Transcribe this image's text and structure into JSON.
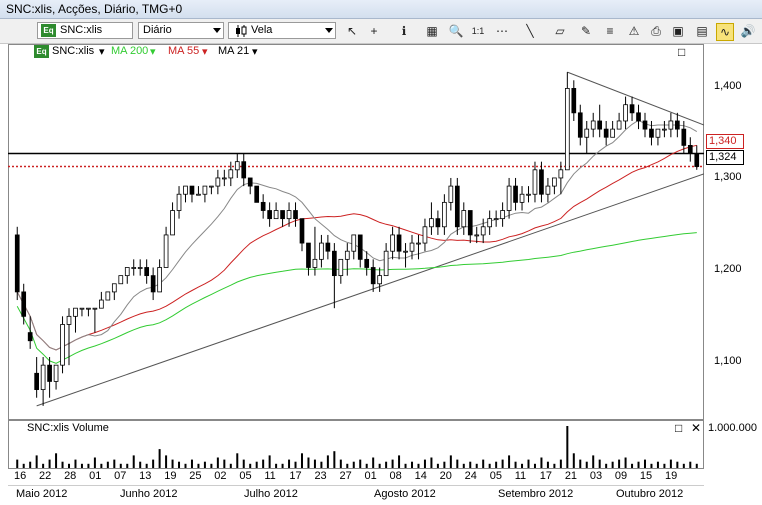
{
  "window": {
    "title": "SNC:xlis, Acções, Diário, TMG+0"
  },
  "toolbar": {
    "symbol": "SNC:xlis",
    "symbol_badge": "Eq",
    "period": "Diário",
    "chart_style": "Vela",
    "zoom_label": "1:1"
  },
  "legend": {
    "symbol": "SNC:xlis",
    "badge": "Eq",
    "ma200": "MA 200",
    "ma55": "MA 55",
    "ma21": "MA 21",
    "colors": {
      "ma200": "#33cc33",
      "ma55": "#cc2222",
      "ma21": "#888888"
    }
  },
  "price_axis": {
    "ticks": [
      "1,400",
      "1,300",
      "1,200",
      "1,100"
    ]
  },
  "price_tags": {
    "resistance": "1,340",
    "last": "1,324"
  },
  "volume_panel": {
    "label": "SNC:xlis Volume",
    "axis_tick": "1.000.000"
  },
  "x_axis": {
    "days": [
      "16",
      "22",
      "28",
      "01",
      "07",
      "13",
      "19",
      "25",
      "02",
      "05",
      "11",
      "17",
      "23",
      "27",
      "01",
      "08",
      "14",
      "20",
      "24",
      "05",
      "11",
      "17",
      "21",
      "03",
      "09",
      "15",
      "19"
    ],
    "months": [
      "Maio 2012",
      "Junho 2012",
      "Julho 2012",
      "Agosto 2012",
      "Setembro 2012",
      "Outubro 2012"
    ]
  },
  "chart_data": {
    "type": "candlestick",
    "ylim": [
      1.02,
      1.45
    ],
    "candles": [
      [
        1.24,
        1.25,
        1.16,
        1.17
      ],
      [
        1.17,
        1.18,
        1.13,
        1.14
      ],
      [
        1.12,
        1.14,
        1.1,
        1.11
      ],
      [
        1.07,
        1.09,
        1.04,
        1.05
      ],
      [
        1.05,
        1.09,
        1.03,
        1.08
      ],
      [
        1.08,
        1.09,
        1.04,
        1.06
      ],
      [
        1.06,
        1.08,
        1.05,
        1.08
      ],
      [
        1.08,
        1.14,
        1.07,
        1.13
      ],
      [
        1.13,
        1.15,
        1.08,
        1.14
      ],
      [
        1.14,
        1.15,
        1.12,
        1.15
      ],
      [
        1.15,
        1.15,
        1.14,
        1.15
      ],
      [
        1.15,
        1.15,
        1.14,
        1.15
      ],
      [
        1.15,
        1.15,
        1.12,
        1.15
      ],
      [
        1.15,
        1.17,
        1.15,
        1.16
      ],
      [
        1.16,
        1.17,
        1.16,
        1.17
      ],
      [
        1.17,
        1.18,
        1.16,
        1.18
      ],
      [
        1.18,
        1.19,
        1.18,
        1.19
      ],
      [
        1.19,
        1.2,
        1.18,
        1.2
      ],
      [
        1.2,
        1.21,
        1.19,
        1.2
      ],
      [
        1.2,
        1.21,
        1.19,
        1.2
      ],
      [
        1.2,
        1.21,
        1.18,
        1.19
      ],
      [
        1.19,
        1.2,
        1.16,
        1.17
      ],
      [
        1.17,
        1.21,
        1.17,
        1.2
      ],
      [
        1.2,
        1.25,
        1.2,
        1.24
      ],
      [
        1.24,
        1.28,
        1.24,
        1.27
      ],
      [
        1.27,
        1.3,
        1.26,
        1.29
      ],
      [
        1.29,
        1.3,
        1.28,
        1.3
      ],
      [
        1.3,
        1.3,
        1.28,
        1.29
      ],
      [
        1.29,
        1.3,
        1.29,
        1.29
      ],
      [
        1.29,
        1.3,
        1.28,
        1.3
      ],
      [
        1.3,
        1.3,
        1.29,
        1.3
      ],
      [
        1.3,
        1.32,
        1.29,
        1.31
      ],
      [
        1.31,
        1.32,
        1.3,
        1.31
      ],
      [
        1.31,
        1.33,
        1.3,
        1.32
      ],
      [
        1.32,
        1.34,
        1.31,
        1.33
      ],
      [
        1.33,
        1.34,
        1.3,
        1.31
      ],
      [
        1.31,
        1.31,
        1.29,
        1.3
      ],
      [
        1.3,
        1.3,
        1.28,
        1.28
      ],
      [
        1.28,
        1.29,
        1.26,
        1.27
      ],
      [
        1.27,
        1.28,
        1.25,
        1.26
      ],
      [
        1.26,
        1.28,
        1.26,
        1.27
      ],
      [
        1.27,
        1.27,
        1.25,
        1.26
      ],
      [
        1.26,
        1.28,
        1.25,
        1.27
      ],
      [
        1.27,
        1.28,
        1.25,
        1.26
      ],
      [
        1.26,
        1.26,
        1.22,
        1.23
      ],
      [
        1.23,
        1.23,
        1.19,
        1.2
      ],
      [
        1.2,
        1.25,
        1.19,
        1.21
      ],
      [
        1.21,
        1.24,
        1.2,
        1.23
      ],
      [
        1.23,
        1.24,
        1.21,
        1.22
      ],
      [
        1.22,
        1.23,
        1.15,
        1.19
      ],
      [
        1.19,
        1.21,
        1.18,
        1.21
      ],
      [
        1.21,
        1.23,
        1.19,
        1.22
      ],
      [
        1.22,
        1.24,
        1.21,
        1.24
      ],
      [
        1.24,
        1.24,
        1.2,
        1.21
      ],
      [
        1.21,
        1.22,
        1.19,
        1.2
      ],
      [
        1.2,
        1.21,
        1.17,
        1.18
      ],
      [
        1.18,
        1.2,
        1.17,
        1.19
      ],
      [
        1.19,
        1.23,
        1.19,
        1.22
      ],
      [
        1.22,
        1.25,
        1.21,
        1.24
      ],
      [
        1.24,
        1.25,
        1.21,
        1.22
      ],
      [
        1.22,
        1.23,
        1.2,
        1.22
      ],
      [
        1.22,
        1.24,
        1.21,
        1.23
      ],
      [
        1.23,
        1.24,
        1.21,
        1.23
      ],
      [
        1.23,
        1.26,
        1.22,
        1.25
      ],
      [
        1.25,
        1.28,
        1.24,
        1.26
      ],
      [
        1.26,
        1.27,
        1.24,
        1.25
      ],
      [
        1.25,
        1.29,
        1.24,
        1.28
      ],
      [
        1.28,
        1.31,
        1.27,
        1.3
      ],
      [
        1.3,
        1.31,
        1.24,
        1.25
      ],
      [
        1.25,
        1.28,
        1.24,
        1.27
      ],
      [
        1.27,
        1.27,
        1.23,
        1.24
      ],
      [
        1.24,
        1.25,
        1.23,
        1.24
      ],
      [
        1.24,
        1.26,
        1.23,
        1.25
      ],
      [
        1.25,
        1.27,
        1.24,
        1.26
      ],
      [
        1.26,
        1.27,
        1.25,
        1.26
      ],
      [
        1.26,
        1.28,
        1.25,
        1.27
      ],
      [
        1.27,
        1.31,
        1.26,
        1.3
      ],
      [
        1.3,
        1.31,
        1.27,
        1.28
      ],
      [
        1.28,
        1.3,
        1.27,
        1.29
      ],
      [
        1.29,
        1.3,
        1.28,
        1.29
      ],
      [
        1.29,
        1.33,
        1.28,
        1.32
      ],
      [
        1.32,
        1.33,
        1.28,
        1.29
      ],
      [
        1.29,
        1.31,
        1.28,
        1.3
      ],
      [
        1.3,
        1.31,
        1.29,
        1.31
      ],
      [
        1.31,
        1.33,
        1.29,
        1.32
      ],
      [
        1.32,
        1.44,
        1.32,
        1.42
      ],
      [
        1.42,
        1.43,
        1.38,
        1.39
      ],
      [
        1.39,
        1.4,
        1.35,
        1.36
      ],
      [
        1.36,
        1.38,
        1.34,
        1.37
      ],
      [
        1.37,
        1.39,
        1.36,
        1.38
      ],
      [
        1.38,
        1.4,
        1.36,
        1.37
      ],
      [
        1.37,
        1.38,
        1.35,
        1.36
      ],
      [
        1.36,
        1.38,
        1.36,
        1.37
      ],
      [
        1.37,
        1.39,
        1.37,
        1.38
      ],
      [
        1.38,
        1.41,
        1.37,
        1.4
      ],
      [
        1.4,
        1.41,
        1.38,
        1.39
      ],
      [
        1.39,
        1.4,
        1.37,
        1.38
      ],
      [
        1.38,
        1.39,
        1.36,
        1.37
      ],
      [
        1.37,
        1.38,
        1.35,
        1.36
      ],
      [
        1.36,
        1.37,
        1.35,
        1.37
      ],
      [
        1.37,
        1.38,
        1.36,
        1.37
      ],
      [
        1.37,
        1.39,
        1.36,
        1.38
      ],
      [
        1.38,
        1.39,
        1.36,
        1.37
      ],
      [
        1.37,
        1.38,
        1.34,
        1.35
      ],
      [
        1.35,
        1.36,
        1.33,
        1.34
      ],
      [
        1.34,
        1.35,
        1.32,
        1.324
      ]
    ],
    "volume": [
      0.2,
      0.1,
      0.15,
      0.3,
      0.1,
      0.2,
      0.35,
      0.15,
      0.1,
      0.2,
      0.1,
      0.1,
      0.25,
      0.1,
      0.15,
      0.2,
      0.1,
      0.1,
      0.3,
      0.15,
      0.1,
      0.2,
      0.45,
      0.3,
      0.2,
      0.15,
      0.1,
      0.2,
      0.1,
      0.15,
      0.1,
      0.25,
      0.2,
      0.1,
      0.35,
      0.2,
      0.1,
      0.15,
      0.2,
      0.3,
      0.1,
      0.1,
      0.2,
      0.15,
      0.35,
      0.25,
      0.2,
      0.15,
      0.3,
      0.4,
      0.2,
      0.1,
      0.15,
      0.2,
      0.1,
      0.25,
      0.1,
      0.15,
      0.2,
      0.3,
      0.1,
      0.15,
      0.1,
      0.2,
      0.25,
      0.1,
      0.15,
      0.3,
      0.2,
      0.1,
      0.15,
      0.1,
      0.2,
      0.1,
      0.15,
      0.2,
      0.3,
      0.15,
      0.1,
      0.2,
      0.1,
      0.25,
      0.15,
      0.1,
      0.2,
      1.0,
      0.35,
      0.2,
      0.15,
      0.3,
      0.2,
      0.1,
      0.15,
      0.2,
      0.25,
      0.1,
      0.15,
      0.2,
      0.1,
      0.15,
      0.1,
      0.2,
      0.15,
      0.1,
      0.15,
      0.1
    ],
    "volume_max": 1000000,
    "lines": {
      "resistance": 1.34,
      "last_price": 1.324
    }
  }
}
